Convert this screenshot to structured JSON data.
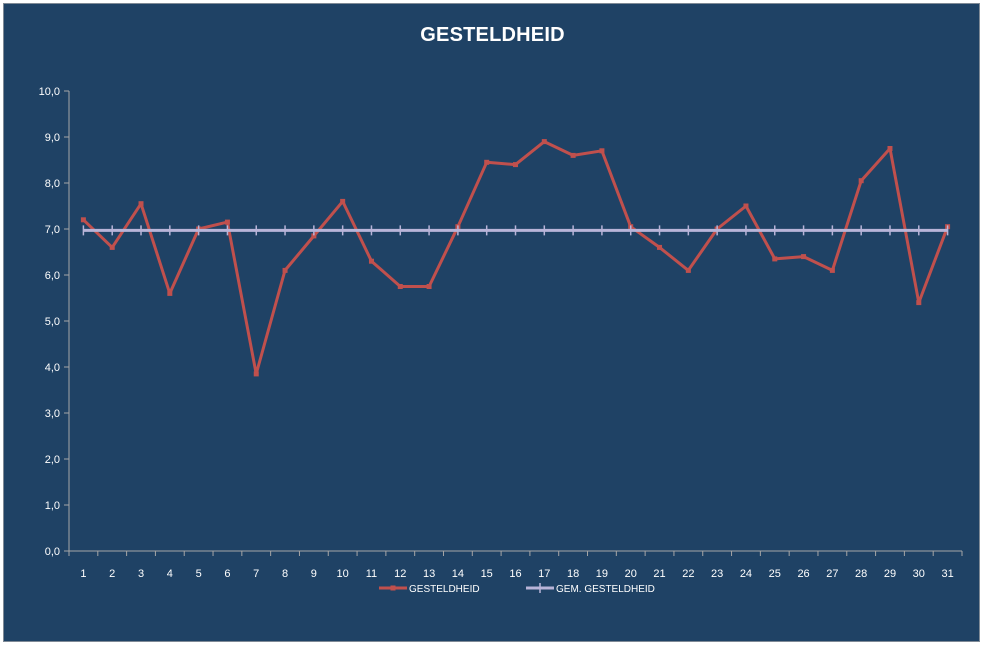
{
  "chart_data": {
    "type": "line",
    "title": "GESTELDHEID",
    "xlabel": "",
    "ylabel": "",
    "x": [
      "1",
      "2",
      "3",
      "4",
      "5",
      "6",
      "7",
      "8",
      "9",
      "10",
      "11",
      "12",
      "13",
      "14",
      "15",
      "16",
      "17",
      "18",
      "19",
      "20",
      "21",
      "22",
      "23",
      "24",
      "25",
      "26",
      "27",
      "28",
      "29",
      "30",
      "31"
    ],
    "ylim": [
      0,
      10
    ],
    "yticks": [
      "0,0",
      "1,0",
      "2,0",
      "3,0",
      "4,0",
      "5,0",
      "6,0",
      "7,0",
      "8,0",
      "9,0",
      "10,0"
    ],
    "grid": false,
    "legend_position": "bottom",
    "series": [
      {
        "name": "GESTELDHEID",
        "color": "#c0504d",
        "values": [
          7.2,
          6.6,
          7.55,
          5.6,
          7.0,
          7.15,
          3.85,
          6.1,
          6.85,
          7.6,
          6.3,
          5.75,
          5.75,
          7.05,
          8.45,
          8.4,
          8.9,
          8.6,
          8.7,
          7.05,
          6.6,
          6.1,
          7.0,
          7.5,
          6.35,
          6.4,
          6.1,
          8.05,
          8.75,
          5.4,
          7.05
        ]
      },
      {
        "name": "GEM. GESTELDHEID",
        "color": "#b8b4d8",
        "values": [
          6.97,
          6.97,
          6.97,
          6.97,
          6.97,
          6.97,
          6.97,
          6.97,
          6.97,
          6.97,
          6.97,
          6.97,
          6.97,
          6.97,
          6.97,
          6.97,
          6.97,
          6.97,
          6.97,
          6.97,
          6.97,
          6.97,
          6.97,
          6.97,
          6.97,
          6.97,
          6.97,
          6.97,
          6.97,
          6.97,
          6.97
        ]
      }
    ],
    "colors": {
      "background": "#1f4265",
      "axis": "#a6a6a6",
      "text": "#ffffff"
    }
  }
}
